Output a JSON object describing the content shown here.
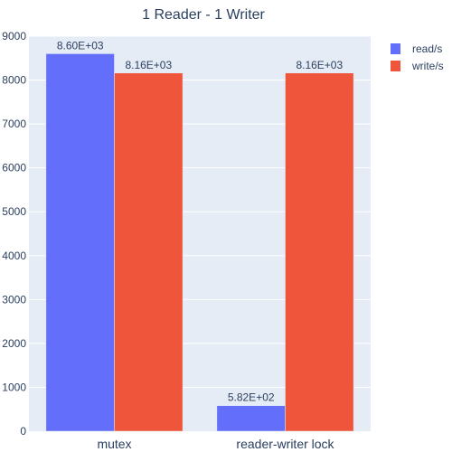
{
  "chart_data": {
    "type": "bar",
    "title": "1 Reader - 1 Writer",
    "categories": [
      "mutex",
      "reader-writer lock"
    ],
    "series": [
      {
        "name": "read/s",
        "color": "#636efa",
        "values": [
          8600,
          582
        ],
        "labels": [
          "8.60E+03",
          "5.82E+02"
        ]
      },
      {
        "name": "write/s",
        "color": "#ef553b",
        "values": [
          8160,
          8160
        ],
        "labels": [
          "8.16E+03",
          "8.16E+03"
        ]
      }
    ],
    "xlabel": "",
    "ylabel": "",
    "ylim": [
      0,
      9000
    ],
    "yticks": [
      0,
      1000,
      2000,
      3000,
      4000,
      5000,
      6000,
      7000,
      8000,
      9000
    ],
    "grid": true,
    "legend": "top-right",
    "plot_bg": "#e5ecf6"
  }
}
